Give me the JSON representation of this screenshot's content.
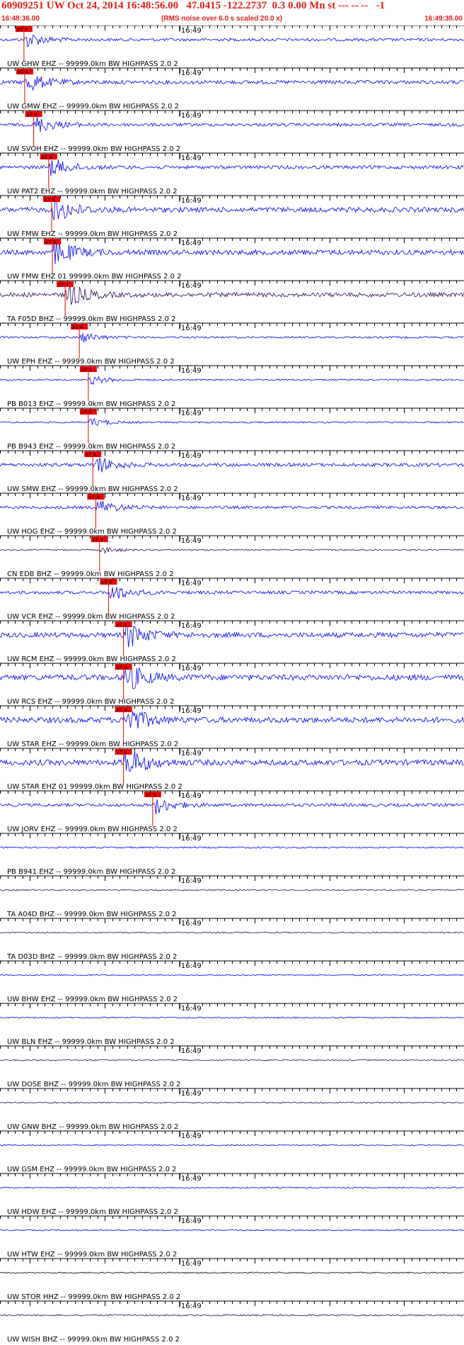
{
  "header": {
    "title": "60909251 UW Oct 24, 2014 16:48:56.00   47.0415 -122.2737  0.3 0.00 Mn st --- -- --   -1",
    "start_time": "16:48:36.00",
    "scale_note": "(RMS noise over 6.0 s scaled 20.0 x)",
    "end_time": "16:49:38.00"
  },
  "colors": {
    "header_red": "#e0201a",
    "trace_blue": "#0000ee",
    "trace_dark": "#2a0a55",
    "pick_red": "#ee0000"
  },
  "chart_data": {
    "type": "line",
    "title": "60909251 UW Oct 24, 2014 16:48:56.00   47.0415 -122.2737  0.3 0.00 Mn st --- -- --   -1",
    "x_start": "16:48:36.00",
    "x_end": "16:49:38.00",
    "minute_mark": "16:49",
    "pick_label": "xT 4",
    "traces": [
      {
        "label": "UW GHW EHZ -- 99999.0km BW  HIGHPASS  2.0  2",
        "color": "#0000ee",
        "pick_time": 3.2,
        "amp": 0.9
      },
      {
        "label": "UW GMW EHZ -- 99999.0km BW  HIGHPASS  2.0  2",
        "color": "#0000ee",
        "pick_time": 3.3,
        "amp": 1.2
      },
      {
        "label": "UW SVOH EHZ -- 99999.0km BW  HIGHPASS  2.0  2",
        "color": "#0000ee",
        "pick_time": 4.5,
        "amp": 1.0
      },
      {
        "label": "UW PAT2 EHZ -- 99999.0km BW  HIGHPASS  2.0  2",
        "color": "#0000ee",
        "pick_time": 6.5,
        "amp": 1.1
      },
      {
        "label": "UW FMW EHZ -- 99999.0km BW  HIGHPASS  2.0  2",
        "color": "#0000ee",
        "pick_time": 6.9,
        "amp": 1.6
      },
      {
        "label": "UW FMW EHZ 01 99999.0km BW  HIGHPASS  2.0  2",
        "color": "#0000ee",
        "pick_time": 7.0,
        "amp": 1.6
      },
      {
        "label": "TA F05D BHZ -- 99999.0km BW  HIGHPASS  2.0  2",
        "color": "#2a0a55",
        "pick_time": 8.7,
        "amp": 1.4
      },
      {
        "label": "UW EPH EHZ -- 99999.0km BW  HIGHPASS  2.0  2",
        "color": "#0000ee",
        "pick_time": 10.6,
        "amp": 0.6
      },
      {
        "label": "PB B013 EHZ -- 99999.0km BW  HIGHPASS  2.0  2",
        "color": "#0000ee",
        "pick_time": 11.8,
        "amp": 0.5
      },
      {
        "label": "PB B943 EHZ -- 99999.0km BW  HIGHPASS  2.0  2",
        "color": "#0000ee",
        "pick_time": 11.8,
        "amp": 0.5
      },
      {
        "label": "UW SMW EHZ -- 99999.0km BW  HIGHPASS  2.0  2",
        "color": "#0000ee",
        "pick_time": 12.4,
        "amp": 1.1
      },
      {
        "label": "UW HOG EHZ -- 99999.0km BW  HIGHPASS  2.0  2",
        "color": "#0000ee",
        "pick_time": 12.8,
        "amp": 0.9
      },
      {
        "label": "CN EDB BHZ -- 99999.0km BW  HIGHPASS  2.0  2",
        "color": "#2a0a55",
        "pick_time": 13.3,
        "amp": 0.4
      },
      {
        "label": "UW VCR EHZ -- 99999.0km BW  HIGHPASS  2.0  2",
        "color": "#0000ee",
        "pick_time": 14.5,
        "amp": 1.0
      },
      {
        "label": "UW RCM EHZ -- 99999.0km BW  HIGHPASS  2.0  2",
        "color": "#0000ee",
        "pick_time": 16.5,
        "amp": 1.6
      },
      {
        "label": "UW RCS EHZ -- 99999.0km BW  HIGHPASS  2.0  2",
        "color": "#0000ee",
        "pick_time": 16.5,
        "amp": 1.8
      },
      {
        "label": "UW STAR EHZ -- 99999.0km BW  HIGHPASS  2.0  2",
        "color": "#0000ee",
        "pick_time": 16.5,
        "amp": 1.8
      },
      {
        "label": "UW STAR EHZ 01 99999.0km BW  HIGHPASS  2.0  2",
        "color": "#0000ee",
        "pick_time": 16.5,
        "amp": 1.8
      },
      {
        "label": "UW JORV EHZ -- 99999.0km BW  HIGHPASS  2.0  2",
        "color": "#0000ee",
        "pick_time": 20.4,
        "amp": 1.0
      },
      {
        "label": "PB B941 EHZ -- 99999.0km BW  HIGHPASS  2.0  2",
        "color": "#0000ee",
        "pick_time": null,
        "amp": 0.5
      },
      {
        "label": "TA A04D BHZ -- 99999.0km BW  HIGHPASS  2.0  2",
        "color": "#2a0a55",
        "pick_time": null,
        "amp": 0.4
      },
      {
        "label": "TA D03D BHZ -- 99999.0km BW  HIGHPASS  2.0  2",
        "color": "#2a0a55",
        "pick_time": null,
        "amp": 0.4
      },
      {
        "label": "UW BHW EHZ -- 99999.0km BW  HIGHPASS  2.0  2",
        "color": "#0000ee",
        "pick_time": null,
        "amp": 0.4
      },
      {
        "label": "UW BLN EHZ -- 99999.0km BW  HIGHPASS  2.0  2",
        "color": "#0000ee",
        "pick_time": null,
        "amp": 0.4
      },
      {
        "label": "UW DOSE BHZ -- 99999.0km BW  HIGHPASS  2.0  2",
        "color": "#2a0a55",
        "pick_time": null,
        "amp": 0.4
      },
      {
        "label": "UW GNW BHZ -- 99999.0km BW  HIGHPASS  2.0  2",
        "color": "#2a0a55",
        "pick_time": null,
        "amp": 0.4
      },
      {
        "label": "UW GSM EHZ -- 99999.0km BW  HIGHPASS  2.0  2",
        "color": "#0000ee",
        "pick_time": null,
        "amp": 0.4
      },
      {
        "label": "UW HDW EHZ -- 99999.0km BW  HIGHPASS  2.0  2",
        "color": "#0000ee",
        "pick_time": null,
        "amp": 0.4
      },
      {
        "label": "UW HTW EHZ -- 99999.0km BW  HIGHPASS  2.0  2",
        "color": "#0000ee",
        "pick_time": null,
        "amp": 0.4
      },
      {
        "label": "UW STOR HHZ -- 99999.0km BW  HIGHPASS  2.0  2",
        "color": "#000000",
        "pick_time": null,
        "amp": 0.4
      },
      {
        "label": "UW WISH BHZ -- 99999.0km BW  HIGHPASS  2.0  2",
        "color": "#2a0a55",
        "pick_time": null,
        "amp": 0.5
      }
    ]
  }
}
